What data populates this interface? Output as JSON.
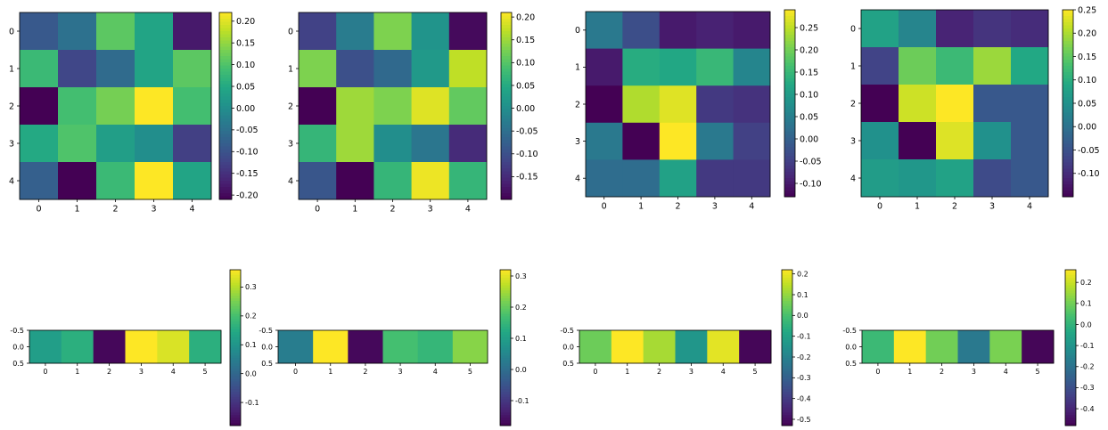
{
  "chart_data": [
    {
      "type": "heatmap",
      "x": [
        "0",
        "1",
        "2",
        "3",
        "4"
      ],
      "y": [
        "0",
        "1",
        "2",
        "3",
        "4"
      ],
      "values": [
        [
          -0.09,
          -0.05,
          0.11,
          0.04,
          -0.18
        ],
        [
          0.08,
          -0.12,
          -0.06,
          0.04,
          0.11
        ],
        [
          -0.21,
          0.09,
          0.13,
          0.22,
          0.09
        ],
        [
          0.05,
          0.1,
          0.03,
          0.0,
          -0.13
        ],
        [
          -0.08,
          -0.21,
          0.08,
          0.22,
          0.04
        ]
      ],
      "vmin": -0.21,
      "vmax": 0.22,
      "colorbar_ticks": [
        "0.20",
        "0.15",
        "0.10",
        "0.05",
        "0.00",
        "-0.05",
        "-0.10",
        "-0.15",
        "-0.20"
      ],
      "colorbar_tick_values": [
        0.2,
        0.15,
        0.1,
        0.05,
        0.0,
        -0.05,
        -0.1,
        -0.15,
        -0.2
      ],
      "colormap": "viridis"
    },
    {
      "type": "heatmap",
      "x": [
        "0",
        "1",
        "2",
        "3",
        "4"
      ],
      "y": [
        "0",
        "1",
        "2",
        "3",
        "4"
      ],
      "values": [
        [
          -0.12,
          -0.03,
          0.13,
          0.01,
          -0.19
        ],
        [
          0.13,
          -0.1,
          -0.06,
          0.02,
          0.17
        ],
        [
          -0.2,
          0.15,
          0.13,
          0.19,
          0.11
        ],
        [
          0.07,
          0.15,
          0.0,
          -0.04,
          -0.15
        ],
        [
          -0.09,
          -0.2,
          0.07,
          0.2,
          0.07
        ]
      ],
      "vmin": -0.2,
      "vmax": 0.21,
      "colorbar_ticks": [
        "0.20",
        "0.15",
        "0.10",
        "0.05",
        "0.00",
        "-0.05",
        "-0.10",
        "-0.15"
      ],
      "colorbar_tick_values": [
        0.2,
        0.15,
        0.1,
        0.05,
        0.0,
        -0.05,
        -0.1,
        -0.15
      ],
      "colormap": "viridis"
    },
    {
      "type": "heatmap",
      "x": [
        "0",
        "1",
        "2",
        "3",
        "4"
      ],
      "y": [
        "0",
        "1",
        "2",
        "3",
        "4"
      ],
      "values": [
        [
          0.04,
          -0.03,
          -0.1,
          -0.09,
          -0.1
        ],
        [
          -0.1,
          0.13,
          0.12,
          0.15,
          0.06
        ],
        [
          -0.13,
          0.24,
          0.27,
          -0.06,
          -0.07
        ],
        [
          0.04,
          -0.13,
          0.29,
          0.04,
          -0.05
        ],
        [
          0.02,
          0.02,
          0.11,
          -0.06,
          -0.06
        ]
      ],
      "vmin": -0.13,
      "vmax": 0.29,
      "colorbar_ticks": [
        "0.25",
        "0.20",
        "0.15",
        "0.10",
        "0.05",
        "0.00",
        "-0.05",
        "-0.10"
      ],
      "colorbar_tick_values": [
        0.25,
        0.2,
        0.15,
        0.1,
        0.05,
        0.0,
        -0.05,
        -0.1
      ],
      "colormap": "viridis"
    },
    {
      "type": "heatmap",
      "x": [
        "0",
        "1",
        "2",
        "3",
        "4"
      ],
      "y": [
        "0",
        "1",
        "2",
        "3",
        "4"
      ],
      "values": [
        [
          0.08,
          0.03,
          -0.11,
          -0.09,
          -0.1
        ],
        [
          -0.07,
          0.16,
          0.12,
          0.19,
          0.09
        ],
        [
          -0.15,
          0.22,
          0.25,
          -0.04,
          -0.04
        ],
        [
          0.05,
          -0.15,
          0.23,
          0.05,
          -0.04
        ],
        [
          0.07,
          0.06,
          0.08,
          -0.06,
          -0.04
        ]
      ],
      "vmin": -0.15,
      "vmax": 0.25,
      "colorbar_ticks": [
        "0.25",
        "0.20",
        "0.15",
        "0.10",
        "0.05",
        "0.00",
        "-0.05",
        "-0.10"
      ],
      "colorbar_tick_values": [
        0.25,
        0.2,
        0.15,
        0.1,
        0.05,
        0.0,
        -0.05,
        -0.1
      ],
      "colormap": "viridis"
    },
    {
      "type": "heatmap",
      "x": [
        "0",
        "1",
        "2",
        "3",
        "4",
        "5"
      ],
      "y": [
        "-0.5",
        "0.0",
        "0.5"
      ],
      "values": [
        [
          0.12,
          0.16,
          -0.17,
          0.36,
          0.33,
          0.16
        ]
      ],
      "vmin": -0.18,
      "vmax": 0.36,
      "colorbar_ticks": [
        "0.3",
        "0.2",
        "0.1",
        "0.0",
        "-0.1"
      ],
      "colorbar_tick_values": [
        0.3,
        0.2,
        0.1,
        0.0,
        -0.1
      ],
      "colormap": "viridis"
    },
    {
      "type": "heatmap",
      "x": [
        "0",
        "1",
        "2",
        "3",
        "4",
        "5"
      ],
      "y": [
        "-0.5",
        "0.0",
        "0.5"
      ],
      "values": [
        [
          0.03,
          0.32,
          -0.17,
          0.17,
          0.15,
          0.23
        ]
      ],
      "vmin": -0.18,
      "vmax": 0.32,
      "colorbar_ticks": [
        "0.3",
        "0.2",
        "0.1",
        "0.0",
        "-0.1"
      ],
      "colorbar_tick_values": [
        0.3,
        0.2,
        0.1,
        0.0,
        -0.1
      ],
      "colormap": "viridis"
    },
    {
      "type": "heatmap",
      "x": [
        "0",
        "1",
        "2",
        "3",
        "4",
        "5"
      ],
      "y": [
        "-0.5",
        "0.0",
        "0.5"
      ],
      "values": [
        [
          0.05,
          0.22,
          0.12,
          -0.14,
          0.19,
          -0.52
        ]
      ],
      "vmin": -0.53,
      "vmax": 0.22,
      "colorbar_ticks": [
        "0.2",
        "0.1",
        "0.0",
        "-0.1",
        "-0.2",
        "-0.3",
        "-0.4",
        "-0.5"
      ],
      "colorbar_tick_values": [
        0.2,
        0.1,
        0.0,
        -0.1,
        -0.2,
        -0.3,
        -0.4,
        -0.5
      ],
      "colormap": "viridis"
    },
    {
      "type": "heatmap",
      "x": [
        "0",
        "1",
        "2",
        "3",
        "4",
        "5"
      ],
      "y": [
        "-0.5",
        "0.0",
        "0.5"
      ],
      "values": [
        [
          0.02,
          0.26,
          0.1,
          -0.18,
          0.11,
          -0.47
        ]
      ],
      "vmin": -0.48,
      "vmax": 0.26,
      "colorbar_ticks": [
        "0.2",
        "0.1",
        "0.0",
        "-0.1",
        "-0.2",
        "-0.3",
        "-0.4"
      ],
      "colorbar_tick_values": [
        0.2,
        0.1,
        0.0,
        -0.1,
        -0.2,
        -0.3,
        -0.4
      ],
      "colormap": "viridis"
    }
  ]
}
